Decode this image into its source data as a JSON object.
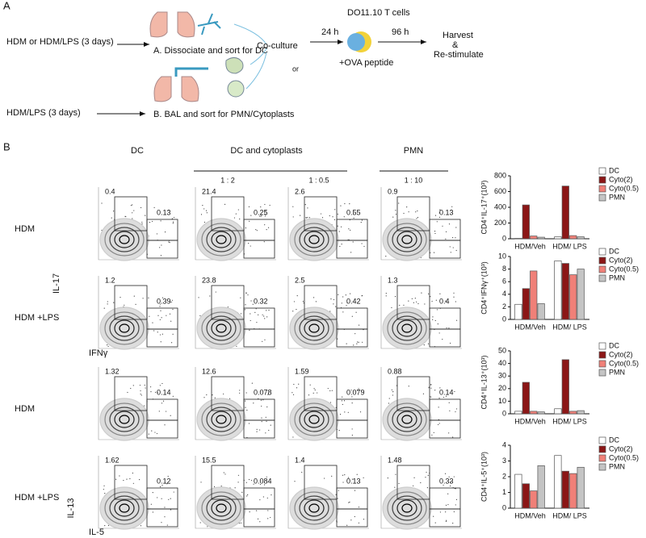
{
  "panel_a": {
    "label": "A",
    "input_top": "HDM or HDM/LPS (3 days)",
    "step_a": "A. Dissociate and sort for DC",
    "coculture": "Co-culture",
    "or": "or",
    "tcells": "DO11.10 T cells",
    "t24": "24 h",
    "t96": "96 h",
    "ova": "+OVA peptide",
    "harvest": "Harvest",
    "amp": "&",
    "restim": "Re-stimulate",
    "input_bottom": "HDM/LPS (3 days)",
    "step_b": "B. BAL and sort for PMN/Cytoplasts"
  },
  "panel_b": {
    "label": "B",
    "columns": [
      "DC",
      "DC and cytoplasts",
      "PMN"
    ],
    "ratios": [
      "1 : 2",
      "1 : 0.5",
      "1 : 10"
    ],
    "rows": [
      {
        "label": "HDM",
        "plots": [
          [
            "0.4",
            "0.13"
          ],
          [
            "21.4",
            "0.25"
          ],
          [
            "2.6",
            "0.55"
          ],
          [
            "0.9",
            "0.13"
          ]
        ]
      },
      {
        "label": "HDM +LPS",
        "plots": [
          [
            "1.2",
            "0.39"
          ],
          [
            "23.8",
            "0.32"
          ],
          [
            "2.5",
            "0.42"
          ],
          [
            "1.3",
            "0.4"
          ]
        ]
      },
      {
        "label": "HDM",
        "plots": [
          [
            "1.32",
            "0.14"
          ],
          [
            "12.6",
            "0.078"
          ],
          [
            "1.59",
            "0.079"
          ],
          [
            "0.88",
            "0.14"
          ]
        ]
      },
      {
        "label": "HDM +LPS",
        "plots": [
          [
            "1.62",
            "0.12"
          ],
          [
            "15.5",
            "0.084"
          ],
          [
            "1.4",
            "0.13"
          ],
          [
            "1.48",
            "0.33"
          ]
        ]
      }
    ],
    "axis_labels": {
      "il17": "IL-17",
      "ifng": "IFNγ",
      "il13": "IL-13",
      "il5": "IL-5"
    }
  },
  "chart_data": [
    {
      "type": "bar",
      "y_label": "CD4⁺IL-17⁺(10³)",
      "categories": [
        "HDM/Veh",
        "HDM/ LPS"
      ],
      "ylim": [
        0,
        800
      ],
      "yticks": [
        0,
        200,
        400,
        600,
        800
      ],
      "series": [
        {
          "name": "DC",
          "color": "#ffffff",
          "values": [
            5,
            25
          ]
        },
        {
          "name": "Cyto(2)",
          "color": "#8b1616",
          "values": [
            430,
            670
          ]
        },
        {
          "name": "Cyto(0.5)",
          "color": "#f08078",
          "values": [
            35,
            40
          ]
        },
        {
          "name": "PMN",
          "color": "#c4c4c4",
          "values": [
            20,
            25
          ]
        }
      ]
    },
    {
      "type": "bar",
      "y_label": "CD4⁺IFNγ⁺(10³)",
      "categories": [
        "HDM/Veh",
        "HDM/ LPS"
      ],
      "ylim": [
        0,
        10
      ],
      "yticks": [
        0,
        2,
        4,
        6,
        8,
        10
      ],
      "series": [
        {
          "name": "DC",
          "color": "#ffffff",
          "values": [
            2.4,
            9.3
          ]
        },
        {
          "name": "Cyto(2)",
          "color": "#8b1616",
          "values": [
            4.9,
            8.9
          ]
        },
        {
          "name": "Cyto(0.5)",
          "color": "#f08078",
          "values": [
            7.7,
            7.1
          ]
        },
        {
          "name": "PMN",
          "color": "#c4c4c4",
          "values": [
            2.5,
            8.0
          ]
        }
      ]
    },
    {
      "type": "bar",
      "y_label": "CD4⁺IL-13⁺(10³)",
      "categories": [
        "HDM/Veh",
        "HDM/ LPS"
      ],
      "ylim": [
        0,
        50
      ],
      "yticks": [
        0,
        10,
        20,
        30,
        40,
        50
      ],
      "series": [
        {
          "name": "DC",
          "color": "#ffffff",
          "values": [
            2,
            4
          ]
        },
        {
          "name": "Cyto(2)",
          "color": "#8b1616",
          "values": [
            25,
            43
          ]
        },
        {
          "name": "Cyto(0.5)",
          "color": "#f08078",
          "values": [
            2,
            2
          ]
        },
        {
          "name": "PMN",
          "color": "#c4c4c4",
          "values": [
            1.5,
            2.5
          ]
        }
      ]
    },
    {
      "type": "bar",
      "y_label": "CD4⁺IL-5⁺(10³)",
      "categories": [
        "HDM/Veh",
        "HDM/ LPS"
      ],
      "ylim": [
        0,
        4
      ],
      "yticks": [
        0,
        1,
        2,
        3,
        4
      ],
      "series": [
        {
          "name": "DC",
          "color": "#ffffff",
          "values": [
            2.15,
            3.35
          ]
        },
        {
          "name": "Cyto(2)",
          "color": "#8b1616",
          "values": [
            1.55,
            2.35
          ]
        },
        {
          "name": "Cyto(0.5)",
          "color": "#f08078",
          "values": [
            1.1,
            2.2
          ]
        },
        {
          "name": "PMN",
          "color": "#c4c4c4",
          "values": [
            2.7,
            2.6
          ]
        }
      ]
    }
  ]
}
